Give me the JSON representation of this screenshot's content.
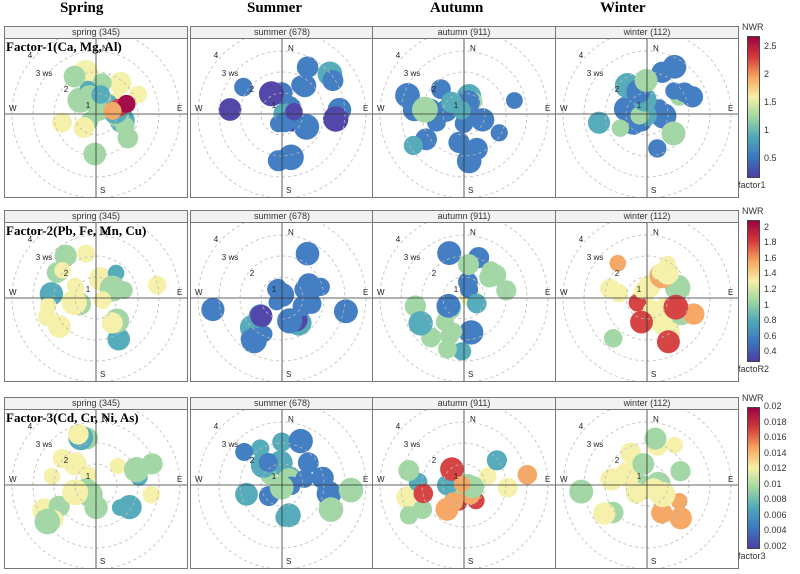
{
  "headers": [
    "Spring",
    "Summer",
    "Autumn",
    "Winter"
  ],
  "legend_title": "NWR",
  "compass": {
    "n": "N",
    "s": "S",
    "e": "E",
    "w": "W"
  },
  "ring_labels": [
    "1",
    "2",
    "3 ws",
    "4"
  ],
  "colors": {
    "low": "#4a3fa5",
    "blue": "#3b78c0",
    "teal": "#4fa8b8",
    "green": "#9fd6a2",
    "yellow": "#f5f0a6",
    "orange": "#f6a55f",
    "red": "#d43a3a",
    "darkred": "#9e0142"
  },
  "chart_data": {
    "type": "polar-heatmap",
    "description_units": "radial axis = wind speed (ws); colour = normalised weighted response (NWR)",
    "rows": [
      {
        "factor_label": "Factor-1(Ca, Mg, Al)",
        "variable": "factor1",
        "scale": {
          "min": 0.2,
          "max": 2.7,
          "ticks": [
            "0.5",
            "1",
            "1.5",
            "2",
            "2.5"
          ],
          "tick_values": [
            0.5,
            1,
            1.5,
            2,
            2.5
          ]
        },
        "panels": [
          {
            "strip": "spring (345)",
            "level": "green-yellow",
            "hot": [
              {
                "dir": 70,
                "ws": 1.0,
                "value": 2.6
              }
            ]
          },
          {
            "strip": "summer (678)",
            "level": "blue"
          },
          {
            "strip": "autumn (911)",
            "level": "blue-teal"
          },
          {
            "strip": "winter (112)",
            "level": "blue-green"
          }
        ]
      },
      {
        "factor_label": "Factor-2(Pb, Fe, Mn, Cu)",
        "variable": "factoR2",
        "scale": {
          "min": 0.3,
          "max": 2.1,
          "ticks": [
            "0.4",
            "0.6",
            "0.8",
            "1",
            "1.2",
            "1.4",
            "1.6",
            "1.8",
            "2"
          ],
          "tick_values": [
            0.4,
            0.6,
            0.8,
            1,
            1.2,
            1.4,
            1.6,
            1.8,
            2
          ]
        },
        "panels": [
          {
            "strip": "spring (345)",
            "level": "green-yellow"
          },
          {
            "strip": "summer (678)",
            "level": "blue"
          },
          {
            "strip": "autumn (911)",
            "level": "teal-green"
          },
          {
            "strip": "winter (112)",
            "level": "yellow-orange"
          }
        ]
      },
      {
        "factor_label": "Factor-3(Cd, Cr, Ni, As)",
        "variable": "factor3",
        "scale": {
          "min": 0.002,
          "max": 0.02,
          "ticks": [
            "0.002",
            "0.004",
            "0.006",
            "0.008",
            "0.01",
            "0.012",
            "0.014",
            "0.016",
            "0.018",
            "0.02"
          ],
          "tick_values": [
            0.002,
            0.004,
            0.006,
            0.008,
            0.01,
            0.012,
            0.014,
            0.016,
            0.018,
            0.02
          ]
        },
        "panels": [
          {
            "strip": "spring (345)",
            "level": "green-yellow"
          },
          {
            "strip": "summer (678)",
            "level": "blue-teal"
          },
          {
            "strip": "autumn (911)",
            "level": "green-orange"
          },
          {
            "strip": "winter (112)",
            "level": "yellow-orange"
          }
        ]
      }
    ]
  }
}
